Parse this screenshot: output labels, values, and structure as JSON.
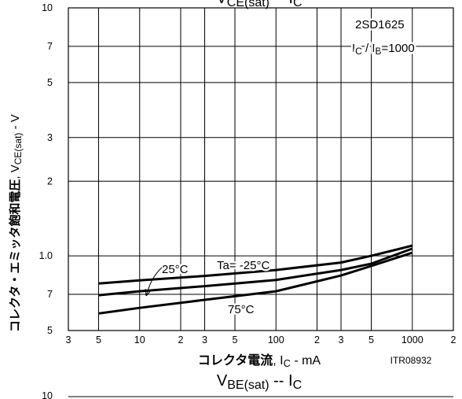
{
  "chart_data": [
    {
      "type": "line",
      "title": [
        {
          "text": "V"
        },
        {
          "text": "CE(sat)",
          "sub": true
        },
        {
          "text": "  --  I"
        },
        {
          "text": "C",
          "sub": true
        }
      ],
      "y_label": [
        {
          "text": "コレクタ・エミッタ飽和電圧",
          "bold": true
        },
        {
          "text": ", V"
        },
        {
          "text": "CE(sat)",
          "sub": true
        },
        {
          "text": " - V"
        }
      ],
      "x_label": [
        {
          "text": "コレクタ電流",
          "bold": true
        },
        {
          "text": ", I"
        },
        {
          "text": "C",
          "sub": true
        },
        {
          "text": " - mA"
        }
      ],
      "device": "2SD1625",
      "condition": [
        {
          "text": "I"
        },
        {
          "text": "C",
          "sub": true
        },
        {
          "text": " / I"
        },
        {
          "text": "B",
          "sub": true
        },
        {
          "text": "=1000"
        }
      ],
      "code": "ITR08932",
      "log_x": true,
      "log_y": true,
      "grid": true,
      "xlim": [
        3,
        2000
      ],
      "ylim": [
        0.5,
        10
      ],
      "xticks": [
        3,
        5,
        10,
        {
          "value": 20,
          "label": "2"
        },
        {
          "value": 30,
          "label": "3"
        },
        {
          "value": 50,
          "label": "5"
        },
        100,
        {
          "value": 200,
          "label": "2"
        },
        {
          "value": 300,
          "label": "3"
        },
        {
          "value": 500,
          "label": "5"
        },
        1000,
        {
          "value": 2000,
          "label": "2"
        }
      ],
      "yticks": [
        {
          "value": 0.5,
          "label": "5"
        },
        {
          "value": 0.7,
          "label": "7"
        },
        {
          "value": 1,
          "label": "1.0"
        },
        2,
        3,
        5,
        7,
        10
      ],
      "x": [
        5,
        10,
        30,
        100,
        300,
        500,
        1000
      ],
      "series": [
        {
          "name": "Ta= -25°C",
          "color": "#000",
          "values": [
            0.774,
            0.797,
            0.83,
            0.877,
            0.94,
            1.0,
            1.1
          ]
        },
        {
          "name": "25°C",
          "color": "#000",
          "values": [
            0.694,
            0.72,
            0.755,
            0.8,
            0.877,
            0.93,
            1.07
          ]
        },
        {
          "name": "75°C",
          "color": "#000",
          "values": [
            0.586,
            0.617,
            0.665,
            0.72,
            0.833,
            0.91,
            1.03
          ]
        }
      ]
    },
    {
      "type": "line",
      "title": [
        {
          "text": "V"
        },
        {
          "text": "BE(sat)",
          "sub": true
        },
        {
          "text": "  --  I"
        },
        {
          "text": "C",
          "sub": true
        }
      ],
      "yticks": [
        10
      ]
    }
  ]
}
